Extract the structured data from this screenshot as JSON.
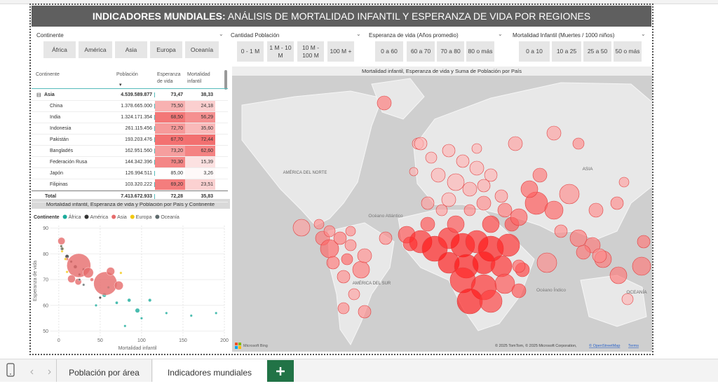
{
  "header": {
    "title_bold": "INDICADORES MUNDIALES:",
    "title_rest": "ANÁLISIS DE MORTALIDAD INFANTIL Y ESPERANZA DE VIDA POR REGIONES"
  },
  "slicers": [
    {
      "title": "Continente",
      "options": [
        "África",
        "América",
        "Asia",
        "Europa",
        "Oceanía"
      ]
    },
    {
      "title": "Cantidad Población",
      "options": [
        "0 - 1 M",
        "1 M - 10 M",
        "10 M - 100 M",
        "100 M +"
      ]
    },
    {
      "title": "Esperanza de vida (Años promedio)",
      "options": [
        "0 a 60",
        "60 a 70",
        "70 a 80",
        "80 o más"
      ]
    },
    {
      "title": "Mortalidad Infantil (Muertes / 1000 niños)",
      "options": [
        "0 a 10",
        "10 a 25",
        "25 a 50",
        "50 o más"
      ]
    }
  ],
  "table": {
    "columns": [
      "Continente",
      "Población",
      "Esperanza de vida",
      "Mortalidad infantil"
    ],
    "group": [
      "Asia",
      "4.539.589.877",
      "73,47",
      "38,33"
    ],
    "rows": [
      [
        "China",
        "1.378.665.000",
        "75,50",
        "24,18"
      ],
      [
        "India",
        "1.324.171.354",
        "68,50",
        "56,29"
      ],
      [
        "Indonesia",
        "261.115.456",
        "72,70",
        "35,60"
      ],
      [
        "Pakistán",
        "193.203.476",
        "67,70",
        "72,44"
      ],
      [
        "Bangladés",
        "162.951.560",
        "73,20",
        "62,60"
      ],
      [
        "Federación Rusa",
        "144.342.396",
        "70,30",
        "15,39"
      ],
      [
        "Japón",
        "126.994.511",
        "85,00",
        "3,26"
      ],
      [
        "Filipinas",
        "103.320.222",
        "69,20",
        "23,51"
      ]
    ],
    "total": [
      "Total",
      "7.413.672.933",
      "72,28",
      "35,83"
    ]
  },
  "chart_data": {
    "type": "scatter",
    "title": "Mortalidad infantil, Esperanza de vida y Población por País y Continente",
    "legend_title": "Continente",
    "x_label": "Mortalidad infantil",
    "y_label": "Esperanza de vida",
    "xlim": [
      -10,
      200
    ],
    "ylim": [
      48,
      91
    ],
    "xticks": [
      0,
      50,
      100,
      150,
      200
    ],
    "yticks": [
      50,
      60,
      70,
      80,
      90
    ],
    "series": [
      {
        "name": "África",
        "color": "#1aab9b",
        "x": [
          55,
          70,
          85,
          95,
          100,
          130,
          160,
          190,
          60,
          80,
          45,
          110
        ],
        "values": [
          64,
          61,
          62,
          58,
          55,
          57,
          56,
          57,
          67,
          52,
          60,
          62
        ],
        "sizes": [
          40,
          20,
          30,
          50,
          15,
          10,
          8,
          5,
          12,
          6,
          10,
          25
        ]
      },
      {
        "name": "América",
        "color": "#333333",
        "x": [
          15,
          20,
          10,
          25,
          30,
          50
        ],
        "values": [
          77,
          75,
          79,
          72,
          74,
          63
        ],
        "sizes": [
          10,
          30,
          35,
          8,
          5,
          3
        ]
      },
      {
        "name": "Asia",
        "color": "#e66c6c",
        "x": [
          24.18,
          56.29,
          35.6,
          72.44,
          62.6,
          15.39,
          3.26,
          23.51,
          40,
          10
        ],
        "values": [
          75.5,
          68.5,
          72.7,
          67.7,
          73.2,
          70.3,
          85,
          69.2,
          70,
          78
        ],
        "sizes": [
          1378,
          1324,
          261,
          193,
          163,
          144,
          127,
          103,
          30,
          20
        ]
      },
      {
        "name": "Europa",
        "color": "#f2c80f",
        "x": [
          5,
          4,
          8,
          10,
          3,
          75
        ],
        "values": [
          82,
          81,
          78,
          73,
          83,
          72.6
        ],
        "sizes": [
          10,
          8,
          5,
          15,
          6,
          3
        ]
      },
      {
        "name": "Oceanía",
        "color": "#5f6b6d",
        "x": [
          4,
          3,
          30,
          25
        ],
        "values": [
          82,
          83,
          68,
          70
        ],
        "sizes": [
          25,
          5,
          3,
          2
        ]
      }
    ]
  },
  "map": {
    "title": "Mortalidad infantil, Esperanza de vida y Suma de Población por País",
    "labels": [
      "AMÉRICA DEL NORTE",
      "Océano Atlántico",
      "AMÉRICA DEL SUR",
      "ASIA",
      "Océano Índico",
      "OCEANÍA"
    ],
    "logo": "Microsoft Bing",
    "attribution": "© 2025 TomTom, © 2025 Microsoft Corporation,",
    "osm": "© OpenStreetMap",
    "terms": "Terms"
  },
  "tabs": [
    "Población por área",
    "Indicadores mundiales"
  ]
}
